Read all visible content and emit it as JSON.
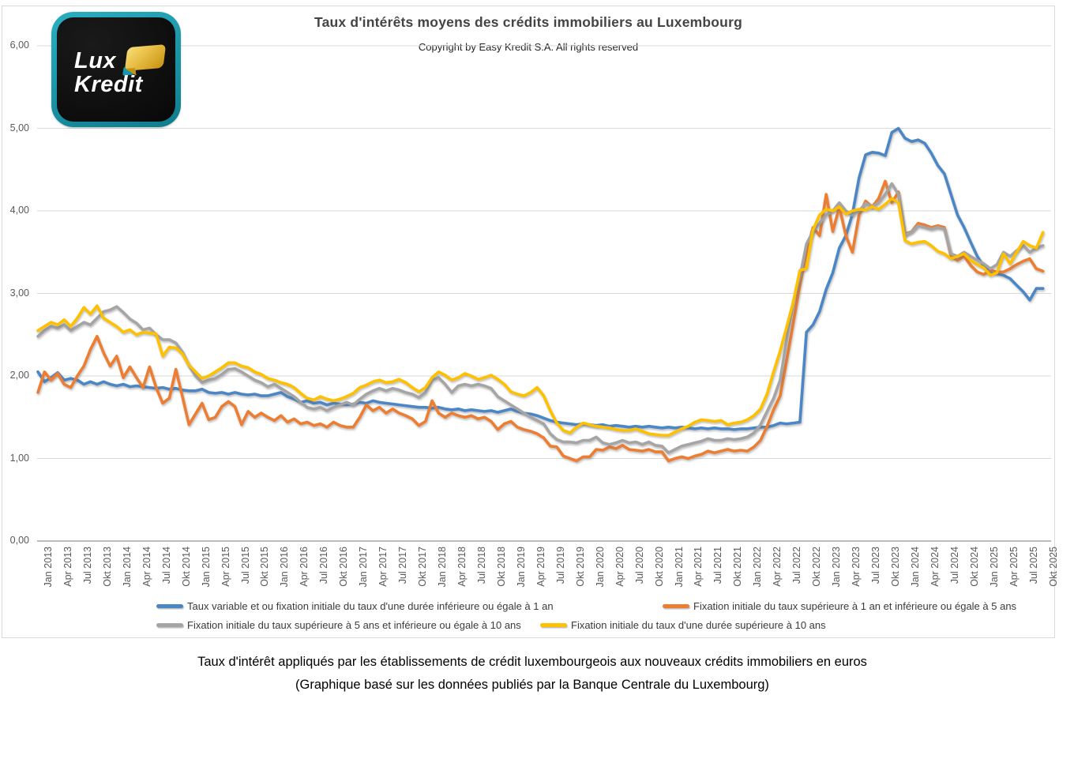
{
  "logo": {
    "line1": "Lux",
    "line2": "Kredit",
    "teal": "#1796a8",
    "gold": "#e0b236"
  },
  "header": {
    "title": "Taux d'intérêts moyens des crédits immobiliers au Luxembourg",
    "subtitle": "Copyright by Easy Kredit S.A. All rights reserved"
  },
  "caption": {
    "line1": "Taux d'intérêt appliqués par les établissements de crédit luxembourgeois aux nouveaux crédits immobiliers en euros",
    "line2": "(Graphique basé sur les données publiés par la Banque Centrale du Luxembourg)"
  },
  "chart_data": {
    "type": "line",
    "title": "Taux d'intérêts moyens des crédits immobiliers au Luxembourg",
    "x_start": "Jan 2013",
    "x_end": "Okt 2025",
    "x_step": "monthly",
    "grid": "horizontal",
    "legend_position": "bottom",
    "ylim": [
      0,
      6
    ],
    "y_ticks": [
      "0,00",
      "1,00",
      "2,00",
      "3,00",
      "4,00",
      "5,00",
      "6,00"
    ],
    "x_tick_labels": [
      "Jan 2013",
      "Apr 2013",
      "Jul 2013",
      "Okt 2013",
      "Jan 2014",
      "Apr 2014",
      "Jul 2014",
      "Okt 2014",
      "Jan 2015",
      "Apr 2015",
      "Jul 2015",
      "Okt 2015",
      "Jan 2016",
      "Apr 2016",
      "Jul 2016",
      "Okt 2016",
      "Jan 2017",
      "Apr 2017",
      "Jul 2017",
      "Okt 2017",
      "Jan 2018",
      "Apr 2018",
      "Jul 2018",
      "Okt 2018",
      "Jan 2019",
      "Apr 2019",
      "Jul 2019",
      "Okt 2019",
      "Jan 2020",
      "Apr 2020",
      "Jul 2020",
      "Okt 2020",
      "Jan 2021",
      "Apr 2021",
      "Jul 2021",
      "Okt 2021",
      "Jan 2022",
      "Apr 2022",
      "Jul 2022",
      "Okt 2022",
      "Jan 2023",
      "Apr 2023",
      "Jul 2023",
      "Okt 2023",
      "Jan 2024",
      "Apr 2024",
      "Jul 2024",
      "Okt 2024",
      "Jan 2025",
      "Apr 2025",
      "Jul 2025",
      "Okt 2025"
    ],
    "series": [
      {
        "name": "Taux variable et ou fixation initiale du taux d'une durée inférieure ou égale à 1 an",
        "color": "#4b86c6",
        "values": [
          2.05,
          1.93,
          1.98,
          2.04,
          1.95,
          1.97,
          1.95,
          1.9,
          1.93,
          1.9,
          1.93,
          1.9,
          1.88,
          1.9,
          1.87,
          1.88,
          1.87,
          1.86,
          1.85,
          1.86,
          1.84,
          1.85,
          1.83,
          1.82,
          1.82,
          1.84,
          1.8,
          1.79,
          1.8,
          1.78,
          1.8,
          1.78,
          1.77,
          1.78,
          1.76,
          1.76,
          1.78,
          1.8,
          1.75,
          1.72,
          1.68,
          1.7,
          1.67,
          1.68,
          1.65,
          1.67,
          1.66,
          1.65,
          1.66,
          1.68,
          1.67,
          1.7,
          1.68,
          1.67,
          1.66,
          1.65,
          1.64,
          1.63,
          1.62,
          1.62,
          1.61,
          1.62,
          1.6,
          1.59,
          1.6,
          1.58,
          1.59,
          1.58,
          1.57,
          1.58,
          1.56,
          1.58,
          1.6,
          1.57,
          1.55,
          1.54,
          1.52,
          1.49,
          1.46,
          1.44,
          1.43,
          1.42,
          1.41,
          1.42,
          1.41,
          1.4,
          1.41,
          1.39,
          1.4,
          1.39,
          1.38,
          1.39,
          1.38,
          1.39,
          1.38,
          1.37,
          1.38,
          1.37,
          1.38,
          1.37,
          1.36,
          1.37,
          1.36,
          1.37,
          1.36,
          1.36,
          1.35,
          1.36,
          1.36,
          1.37,
          1.38,
          1.38,
          1.4,
          1.43,
          1.42,
          1.43,
          1.44,
          2.53,
          2.62,
          2.78,
          3.05,
          3.25,
          3.55,
          3.7,
          3.96,
          4.4,
          4.68,
          4.71,
          4.7,
          4.67,
          4.95,
          5.0,
          4.88,
          4.84,
          4.86,
          4.82,
          4.7,
          4.55,
          4.45,
          4.2,
          3.95,
          3.8,
          3.62,
          3.45,
          3.33,
          3.27,
          3.24,
          3.22,
          3.18,
          3.1,
          3.02,
          2.92,
          3.06,
          3.06
        ]
      },
      {
        "name": "Fixation initiale du taux supérieure à 1 an et inférieure ou égale à 5 ans",
        "color": "#ED7D31",
        "values": [
          1.8,
          2.05,
          1.95,
          2.03,
          1.9,
          1.86,
          2.0,
          2.12,
          2.32,
          2.48,
          2.28,
          2.12,
          2.24,
          1.98,
          2.11,
          1.98,
          1.86,
          2.11,
          1.86,
          1.67,
          1.73,
          2.08,
          1.75,
          1.41,
          1.54,
          1.67,
          1.47,
          1.5,
          1.63,
          1.69,
          1.63,
          1.41,
          1.57,
          1.5,
          1.55,
          1.5,
          1.46,
          1.52,
          1.44,
          1.48,
          1.42,
          1.44,
          1.4,
          1.42,
          1.38,
          1.44,
          1.4,
          1.38,
          1.38,
          1.5,
          1.65,
          1.58,
          1.62,
          1.55,
          1.6,
          1.55,
          1.52,
          1.48,
          1.4,
          1.45,
          1.7,
          1.55,
          1.5,
          1.55,
          1.52,
          1.5,
          1.52,
          1.48,
          1.5,
          1.45,
          1.35,
          1.42,
          1.45,
          1.38,
          1.35,
          1.33,
          1.3,
          1.25,
          1.15,
          1.14,
          1.03,
          1.0,
          0.97,
          1.02,
          1.02,
          1.11,
          1.1,
          1.14,
          1.12,
          1.16,
          1.11,
          1.1,
          1.09,
          1.11,
          1.08,
          1.08,
          0.97,
          1.0,
          1.02,
          1.0,
          1.03,
          1.05,
          1.09,
          1.07,
          1.09,
          1.11,
          1.09,
          1.1,
          1.09,
          1.14,
          1.22,
          1.39,
          1.59,
          1.76,
          2.2,
          2.65,
          3.1,
          3.5,
          3.8,
          3.7,
          4.2,
          3.75,
          4.05,
          3.7,
          3.5,
          3.95,
          4.12,
          4.05,
          4.15,
          4.36,
          4.1,
          4.23,
          3.72,
          3.75,
          3.85,
          3.83,
          3.8,
          3.82,
          3.8,
          3.45,
          3.4,
          3.45,
          3.34,
          3.26,
          3.23,
          3.28,
          3.26,
          3.26,
          3.3,
          3.35,
          3.39,
          3.42,
          3.3,
          3.27
        ]
      },
      {
        "name": "Fixation initiale du taux supérieure à 5 ans et inférieure ou égale à 10 ans",
        "color": "#A5A5A5",
        "values": [
          2.48,
          2.55,
          2.6,
          2.58,
          2.62,
          2.55,
          2.6,
          2.65,
          2.62,
          2.7,
          2.78,
          2.8,
          2.84,
          2.77,
          2.69,
          2.64,
          2.56,
          2.58,
          2.5,
          2.44,
          2.44,
          2.4,
          2.29,
          2.13,
          2.0,
          1.92,
          1.95,
          1.97,
          2.02,
          2.08,
          2.09,
          2.05,
          2.0,
          1.95,
          1.92,
          1.87,
          1.9,
          1.85,
          1.8,
          1.75,
          1.68,
          1.62,
          1.6,
          1.62,
          1.58,
          1.62,
          1.65,
          1.68,
          1.65,
          1.72,
          1.78,
          1.82,
          1.85,
          1.82,
          1.85,
          1.83,
          1.8,
          1.78,
          1.74,
          1.8,
          1.95,
          1.98,
          1.9,
          1.8,
          1.88,
          1.9,
          1.88,
          1.9,
          1.88,
          1.85,
          1.75,
          1.7,
          1.65,
          1.6,
          1.55,
          1.5,
          1.46,
          1.42,
          1.3,
          1.23,
          1.2,
          1.2,
          1.19,
          1.22,
          1.22,
          1.26,
          1.19,
          1.17,
          1.19,
          1.22,
          1.19,
          1.2,
          1.17,
          1.2,
          1.16,
          1.15,
          1.07,
          1.11,
          1.15,
          1.17,
          1.19,
          1.21,
          1.24,
          1.22,
          1.22,
          1.24,
          1.23,
          1.24,
          1.26,
          1.31,
          1.41,
          1.57,
          1.73,
          1.95,
          2.45,
          2.9,
          3.2,
          3.6,
          3.75,
          3.85,
          3.95,
          4.0,
          4.1,
          4.0,
          3.95,
          4.0,
          4.09,
          4.05,
          4.1,
          4.2,
          4.33,
          4.2,
          3.7,
          3.75,
          3.82,
          3.8,
          3.78,
          3.8,
          3.78,
          3.48,
          3.45,
          3.5,
          3.45,
          3.4,
          3.36,
          3.3,
          3.35,
          3.5,
          3.45,
          3.52,
          3.58,
          3.5,
          3.55,
          3.58
        ]
      },
      {
        "name": "Fixation initiale du taux d'une durée supérieure à 10 ans",
        "color": "#FFC000",
        "values": [
          2.55,
          2.6,
          2.65,
          2.62,
          2.68,
          2.6,
          2.7,
          2.83,
          2.75,
          2.85,
          2.7,
          2.65,
          2.6,
          2.53,
          2.56,
          2.5,
          2.53,
          2.52,
          2.51,
          2.24,
          2.35,
          2.34,
          2.27,
          2.13,
          2.05,
          1.97,
          2.0,
          2.05,
          2.1,
          2.16,
          2.16,
          2.12,
          2.1,
          2.05,
          2.02,
          1.97,
          1.95,
          1.92,
          1.9,
          1.86,
          1.79,
          1.73,
          1.71,
          1.75,
          1.72,
          1.7,
          1.72,
          1.75,
          1.79,
          1.86,
          1.89,
          1.93,
          1.95,
          1.92,
          1.93,
          1.96,
          1.92,
          1.86,
          1.81,
          1.86,
          1.98,
          2.05,
          2.01,
          1.95,
          1.98,
          2.03,
          2.0,
          1.96,
          1.98,
          2.01,
          1.96,
          1.9,
          1.81,
          1.78,
          1.76,
          1.8,
          1.86,
          1.76,
          1.58,
          1.43,
          1.34,
          1.31,
          1.38,
          1.43,
          1.41,
          1.39,
          1.38,
          1.37,
          1.35,
          1.34,
          1.34,
          1.36,
          1.33,
          1.3,
          1.29,
          1.28,
          1.28,
          1.32,
          1.36,
          1.39,
          1.44,
          1.47,
          1.46,
          1.45,
          1.46,
          1.41,
          1.43,
          1.44,
          1.47,
          1.52,
          1.6,
          1.78,
          2.05,
          2.3,
          2.6,
          2.9,
          3.28,
          3.3,
          3.77,
          3.95,
          4.02,
          4.0,
          4.05,
          3.96,
          4.0,
          4.02,
          4.01,
          4.05,
          4.02,
          4.08,
          4.15,
          4.1,
          3.64,
          3.6,
          3.62,
          3.63,
          3.58,
          3.51,
          3.48,
          3.42,
          3.45,
          3.48,
          3.4,
          3.35,
          3.31,
          3.22,
          3.25,
          3.48,
          3.36,
          3.5,
          3.63,
          3.58,
          3.55,
          3.74
        ]
      }
    ]
  }
}
